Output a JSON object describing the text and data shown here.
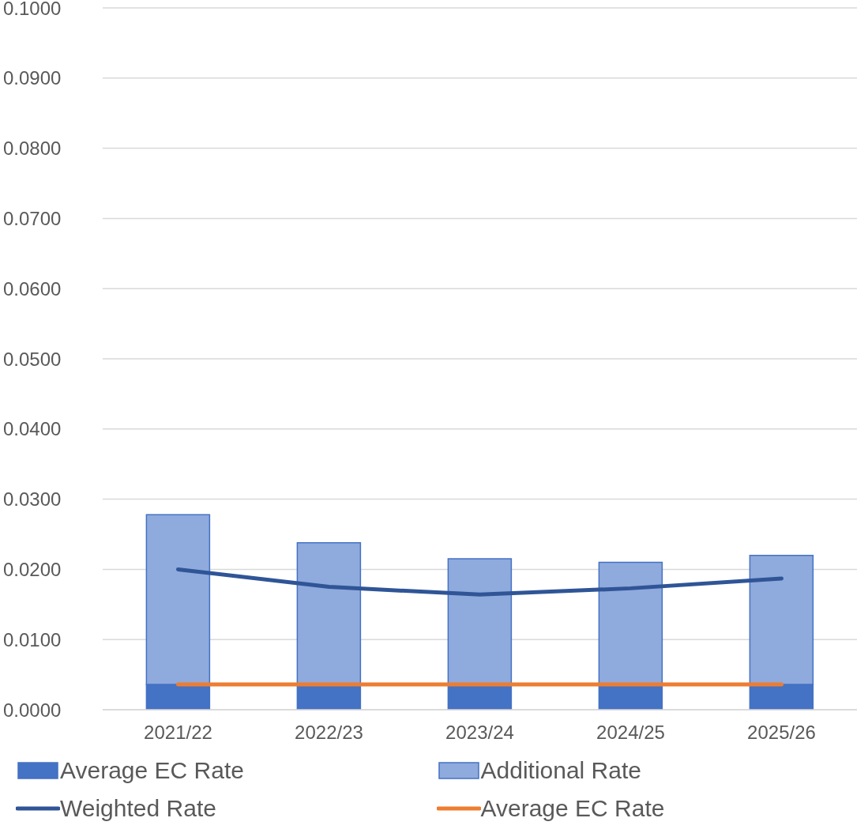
{
  "chart_data": {
    "type": "bar",
    "stacked": true,
    "categories": [
      "2021/22",
      "2022/23",
      "2023/24",
      "2024/25",
      "2025/26"
    ],
    "series": [
      {
        "name": "Average EC Rate",
        "color": "#4472c4",
        "values": [
          0.0036,
          0.0036,
          0.0036,
          0.0036,
          0.0036
        ]
      },
      {
        "name": "Additional Rate",
        "color": "#8faadc",
        "values": [
          0.0242,
          0.0202,
          0.0179,
          0.0174,
          0.0184
        ]
      },
      {
        "name": "Weighted Rate",
        "type": "line",
        "color": "#2f5597",
        "values": [
          0.02,
          0.0175,
          0.0164,
          0.0173,
          0.0187
        ]
      },
      {
        "name": "Average EC Rate",
        "type": "line",
        "color": "#ed7d31",
        "values": [
          0.0036,
          0.0036,
          0.0036,
          0.0036,
          0.0036
        ]
      }
    ],
    "ylim": [
      0,
      0.1
    ],
    "yticks": [
      {
        "value": 0,
        "label": "0.0000"
      },
      {
        "value": 0.01,
        "label": "0.0100"
      },
      {
        "value": 0.02,
        "label": "0.0200"
      },
      {
        "value": 0.03,
        "label": "0.0300"
      },
      {
        "value": 0.04,
        "label": "0.0400"
      },
      {
        "value": 0.05,
        "label": "0.0500"
      },
      {
        "value": 0.06,
        "label": "0.0600"
      },
      {
        "value": 0.07,
        "label": "0.0700"
      },
      {
        "value": 0.08,
        "label": "0.0800"
      },
      {
        "value": 0.09,
        "label": "0.0900"
      },
      {
        "value": 0.1,
        "label": "0.1000"
      }
    ],
    "grid": "y",
    "legend": "bottom",
    "marker": "none"
  }
}
